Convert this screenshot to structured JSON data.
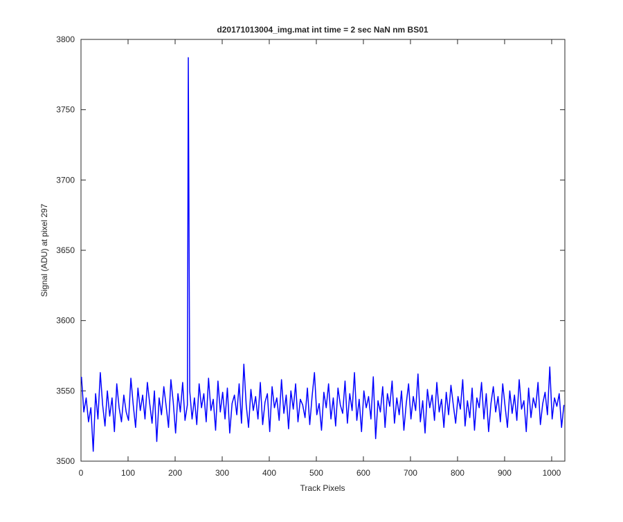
{
  "chart_data": {
    "type": "line",
    "title": "d20171013004_img.mat int time = 2 sec  NaN nm BS01",
    "xlabel": "Track Pixels",
    "ylabel": "Signal (ADU) at pixel 297",
    "xlim": [
      0,
      1028
    ],
    "ylim": [
      3500,
      3800
    ],
    "xticks": [
      0,
      100,
      200,
      300,
      400,
      500,
      600,
      700,
      800,
      900,
      1000
    ],
    "yticks": [
      3500,
      3550,
      3600,
      3650,
      3700,
      3750,
      3800
    ],
    "grid": false,
    "series": [
      {
        "color": "#0000ff",
        "x": [
          1,
          6,
          11,
          16,
          21,
          26,
          31,
          36,
          41,
          46,
          51,
          56,
          61,
          66,
          71,
          76,
          81,
          86,
          91,
          96,
          101,
          106,
          111,
          116,
          121,
          126,
          131,
          136,
          141,
          146,
          151,
          156,
          161,
          166,
          171,
          176,
          181,
          186,
          191,
          196,
          201,
          206,
          211,
          216,
          221,
          226,
          228,
          231,
          236,
          241,
          246,
          251,
          256,
          261,
          266,
          271,
          276,
          281,
          286,
          291,
          296,
          301,
          306,
          311,
          316,
          321,
          326,
          331,
          336,
          341,
          346,
          351,
          356,
          361,
          366,
          371,
          376,
          381,
          386,
          391,
          396,
          401,
          406,
          411,
          416,
          421,
          426,
          431,
          436,
          441,
          446,
          451,
          456,
          461,
          466,
          471,
          476,
          481,
          486,
          491,
          496,
          501,
          506,
          511,
          516,
          521,
          526,
          531,
          536,
          541,
          546,
          551,
          556,
          561,
          566,
          571,
          576,
          581,
          586,
          591,
          596,
          601,
          606,
          611,
          616,
          621,
          626,
          631,
          636,
          641,
          646,
          651,
          656,
          661,
          666,
          671,
          676,
          681,
          686,
          691,
          696,
          701,
          706,
          711,
          716,
          721,
          726,
          731,
          736,
          741,
          746,
          751,
          756,
          761,
          766,
          771,
          776,
          781,
          786,
          791,
          796,
          801,
          806,
          811,
          816,
          821,
          826,
          831,
          836,
          841,
          846,
          851,
          856,
          861,
          866,
          871,
          876,
          881,
          886,
          891,
          896,
          901,
          906,
          911,
          916,
          921,
          926,
          931,
          936,
          941,
          946,
          951,
          956,
          961,
          966,
          971,
          976,
          981,
          986,
          991,
          996,
          1001,
          1006,
          1011,
          1016,
          1021,
          1026
        ],
        "values": [
          3560,
          3535,
          3545,
          3528,
          3538,
          3507,
          3548,
          3530,
          3563,
          3540,
          3525,
          3550,
          3532,
          3545,
          3521,
          3555,
          3538,
          3528,
          3547,
          3535,
          3529,
          3559,
          3540,
          3524,
          3552,
          3536,
          3547,
          3530,
          3556,
          3541,
          3527,
          3550,
          3514,
          3545,
          3533,
          3553,
          3539,
          3524,
          3558,
          3542,
          3520,
          3548,
          3535,
          3556,
          3529,
          3540,
          3787,
          3550,
          3530,
          3545,
          3526,
          3555,
          3538,
          3548,
          3528,
          3559,
          3536,
          3544,
          3522,
          3557,
          3535,
          3549,
          3530,
          3552,
          3520,
          3541,
          3547,
          3533,
          3555,
          3527,
          3569,
          3540,
          3524,
          3551,
          3536,
          3546,
          3530,
          3556,
          3526,
          3542,
          3548,
          3521,
          3553,
          3538,
          3545,
          3529,
          3558,
          3534,
          3547,
          3523,
          3550,
          3537,
          3555,
          3528,
          3544,
          3540,
          3531,
          3552,
          3526,
          3546,
          3563,
          3533,
          3541,
          3522,
          3549,
          3538,
          3555,
          3530,
          3545,
          3525,
          3552,
          3540,
          3534,
          3557,
          3527,
          3548,
          3536,
          3563,
          3529,
          3544,
          3521,
          3550,
          3538,
          3546,
          3530,
          3560,
          3516,
          3543,
          3535,
          3553,
          3524,
          3548,
          3539,
          3557,
          3527,
          3545,
          3533,
          3550,
          3522,
          3541,
          3555,
          3530,
          3546,
          3536,
          3562,
          3528,
          3543,
          3520,
          3551,
          3538,
          3547,
          3529,
          3556,
          3535,
          3544,
          3524,
          3549,
          3533,
          3554,
          3540,
          3527,
          3546,
          3537,
          3558,
          3525,
          3543,
          3531,
          3552,
          3522,
          3545,
          3538,
          3556,
          3530,
          3548,
          3521,
          3541,
          3553,
          3535,
          3546,
          3528,
          3555,
          3539,
          3524,
          3550,
          3534,
          3547,
          3529,
          3558,
          3537,
          3543,
          3521,
          3552,
          3531,
          3545,
          3538,
          3556,
          3526,
          3541,
          3549,
          3533,
          3567,
          3530,
          3545,
          3539,
          3548,
          3524,
          3540
        ]
      }
    ]
  }
}
